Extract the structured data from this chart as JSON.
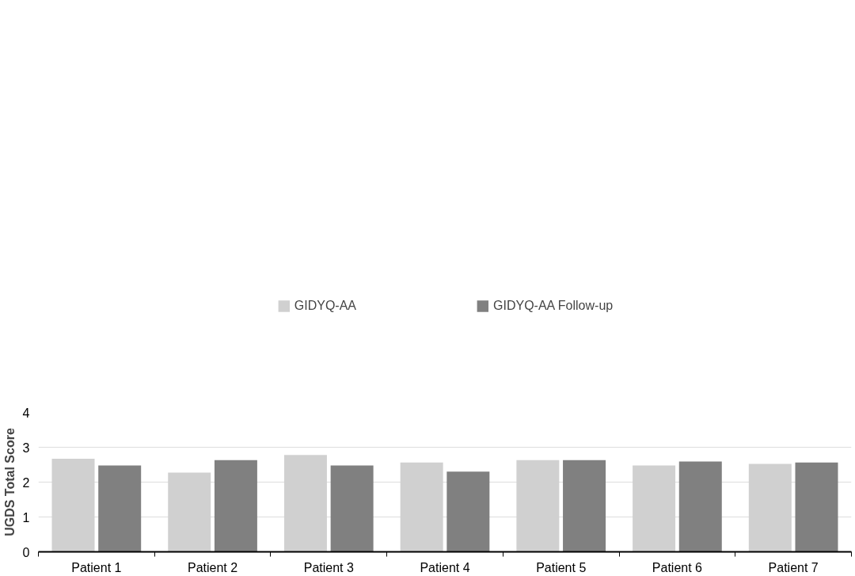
{
  "chart_data": {
    "type": "bar",
    "ylabel": "UGDS Total Score",
    "categories": [
      "Patient 1",
      "Patient 2",
      "Patient 3",
      "Patient 4",
      "Patient 5",
      "Patient 6",
      "Patient 7"
    ],
    "series": [
      {
        "name": "GIDYQ-AA",
        "color": "#d0d0d0",
        "values": [
          2.67,
          2.27,
          2.78,
          2.56,
          2.63,
          2.48,
          2.52
        ]
      },
      {
        "name": "GIDYQ-AA Follow-up",
        "color": "#808080",
        "values": [
          2.48,
          2.63,
          2.48,
          2.3,
          2.63,
          2.59,
          2.56
        ]
      }
    ],
    "ylim": [
      0,
      4
    ],
    "yticks": [
      0,
      1,
      2,
      3,
      4
    ],
    "grid": "y",
    "legend": "top"
  }
}
